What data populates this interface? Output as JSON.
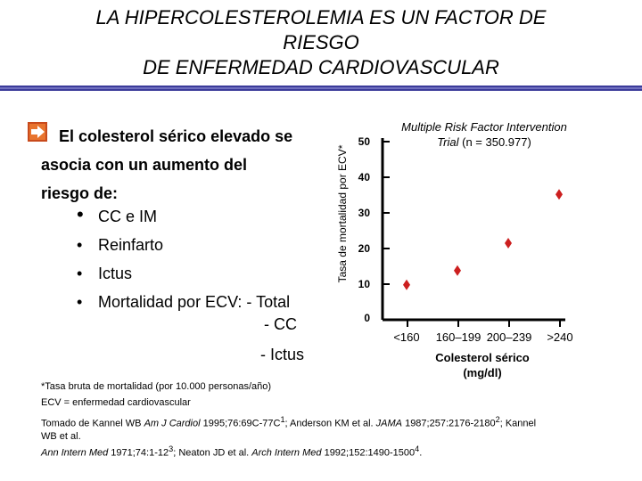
{
  "title": {
    "line1": "LA HIPERCOLESTEROLEMIA ES UN FACTOR DE",
    "line2": "RIESGO",
    "line3": "DE ENFERMEDAD CARDIOVASCULAR"
  },
  "main_bullet": {
    "icon": "arrow-icon",
    "line1": "El colesterol sérico elevado se",
    "line2": "asocia con un aumento del",
    "line3": "riesgo de:"
  },
  "sub_items": [
    "CC e IM",
    "Reinfarto",
    "Ictus",
    "Mortalidad por ECV: - Total"
  ],
  "continuation": [
    "- CC",
    "- Ictus"
  ],
  "footnote": "*Tasa bruta de mortalidad (por 10.000 personas/año)",
  "abbreviation": "ECV = enfermedad cardiovascular",
  "references": {
    "r1_pre": "Tomado de Kannel WB ",
    "r1_journal": "Am J Cardiol",
    "r1_post": " 1995;76:69C-77C",
    "r1_sup": "1",
    "r1_mid": "; Anderson KM et al. ",
    "r1_journal2": "JAMA",
    "r1_post2": " 1987;257:2176-2180",
    "r1_sup2": "2",
    "r1_end": "; Kannel",
    "r2": "WB et al.",
    "r3_journal": "Ann Intern Med",
    "r3_post": " 1971;74:1-12",
    "r3_sup": "3",
    "r3_mid": "; Neaton JD et al. ",
    "r3_journal2": "Arch Intern Med",
    "r3_post2": " 1992;152:1490-1500",
    "r3_sup2": "4",
    "r3_end": "."
  },
  "chart_data": {
    "type": "scatter",
    "title_line1": "Multiple Risk Factor Intervention",
    "title_italic": "Trial",
    "title_rest": " (n = 350.977)",
    "ylabel": "Tasa de mortalidad por ECV*",
    "xlabel_line1": "Colesterol sérico",
    "xlabel_line2": "(mg/dl)",
    "categories": [
      "<160",
      "160–199",
      "200–239",
      ">240"
    ],
    "values": [
      9.8,
      13.8,
      21.5,
      35.2
    ],
    "yticks": [
      0,
      10,
      20,
      30,
      40,
      50
    ],
    "ylim": [
      0,
      50
    ],
    "marker_color": "#cc1f1f",
    "marker": "diamond"
  }
}
